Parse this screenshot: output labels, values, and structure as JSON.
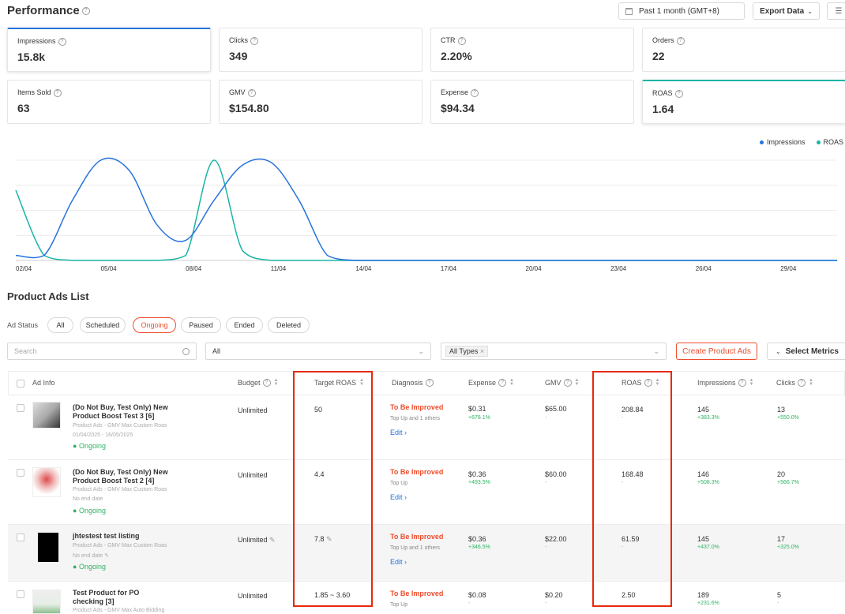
{
  "header": {
    "title": "Performance",
    "date_range": "Past 1 month (GMT+8)",
    "export_label": "Export Data"
  },
  "metrics": [
    {
      "label": "Impressions",
      "value": "15.8k"
    },
    {
      "label": "Clicks",
      "value": "349"
    },
    {
      "label": "CTR",
      "value": "2.20%"
    },
    {
      "label": "Orders",
      "value": "22"
    },
    {
      "label": "Items Sold",
      "value": "63"
    },
    {
      "label": "GMV",
      "value": "$154.80"
    },
    {
      "label": "Expense",
      "value": "$94.34"
    },
    {
      "label": "ROAS",
      "value": "1.64"
    }
  ],
  "chart": {
    "legend": [
      {
        "name": "Impressions",
        "color": "#2673dd"
      },
      {
        "name": "ROAS",
        "color": "#18b5a6"
      }
    ],
    "x_ticks": [
      "02/04",
      "05/04",
      "08/04",
      "11/04",
      "14/04",
      "17/04",
      "20/04",
      "23/04",
      "26/04",
      "29/04"
    ]
  },
  "chart_data": {
    "type": "line",
    "x": [
      "02/04",
      "03/04",
      "04/04",
      "05/04",
      "06/04",
      "07/04",
      "08/04",
      "09/04",
      "10/04",
      "11/04",
      "12/04",
      "13/04",
      "14/04",
      "15/04",
      "16/04",
      "17/04",
      "18/04",
      "19/04",
      "20/04",
      "21/04",
      "22/04",
      "23/04",
      "24/04",
      "25/04",
      "26/04",
      "27/04",
      "28/04",
      "29/04",
      "30/04",
      "01/05"
    ],
    "series": [
      {
        "name": "Impressions",
        "values": [
          0.05,
          0.05,
          0.6,
          1.0,
          0.9,
          0.35,
          0.2,
          0.6,
          0.95,
          0.98,
          0.6,
          0.05,
          0.0,
          0.0,
          0.0,
          0.0,
          0.0,
          0.0,
          0.0,
          0.0,
          0.0,
          0.0,
          0.0,
          0.0,
          0.0,
          0.0,
          0.0,
          0.0,
          0.0,
          0.0
        ]
      },
      {
        "name": "ROAS",
        "values": [
          0.7,
          0.05,
          0.0,
          0.0,
          0.0,
          0.0,
          0.05,
          1.0,
          0.1,
          0.0,
          0.0,
          0.0,
          0.0,
          0.0,
          0.0,
          0.0,
          0.0,
          0.0,
          0.0,
          0.0,
          0.0,
          0.0,
          0.0,
          0.0,
          0.0,
          0.0,
          0.0,
          0.0,
          0.0,
          0.0
        ]
      }
    ]
  },
  "list": {
    "title": "Product Ads List",
    "status_label": "Ad Status",
    "status_options": [
      "All",
      "Scheduled",
      "Ongoing",
      "Paused",
      "Ended",
      "Deleted"
    ],
    "active_status": "Ongoing",
    "search_placeholder": "Search",
    "filter_all": "All",
    "types_tag": "All Types",
    "create_label": "Create Product Ads",
    "metrics_label": "Select Metrics",
    "columns": {
      "ad_info": "Ad Info",
      "budget": "Budget",
      "target_roas": "Target ROAS",
      "diagnosis": "Diagnosis",
      "expense": "Expense",
      "gmv": "GMV",
      "roas": "ROAS",
      "impressions": "Impressions",
      "clicks": "Clicks"
    },
    "rows": [
      {
        "name": "(Do Not Buy, Test Only) New Product Boost Test 3 [6]",
        "type": "Product Ads - GMV Max Custom Roas",
        "dates": "01/04/2025 - 16/05/2025",
        "status": "Ongoing",
        "budget": "Unlimited",
        "target_roas": "50",
        "diagnosis": "To Be Improved",
        "diag_sub": "Top Up and 1 others",
        "edit": "Edit",
        "expense": "$0.31",
        "expense_delta": "+678.1%",
        "gmv": "$65.00",
        "gmv_delta": "-",
        "roas": "208.84",
        "roas_delta": "-",
        "impressions": "145",
        "impressions_delta": "+383.3%",
        "clicks": "13",
        "clicks_delta": "+550.0%"
      },
      {
        "name": "(Do Not Buy, Test Only) New Product Boost Test 2 [4]",
        "type": "Product Ads - GMV Max Custom Roas",
        "dates": "No end date",
        "status": "Ongoing",
        "budget": "Unlimited",
        "target_roas": "4.4",
        "diagnosis": "To Be Improved",
        "diag_sub": "Top Up",
        "edit": "Edit",
        "expense": "$0.36",
        "expense_delta": "+493.5%",
        "gmv": "$60.00",
        "gmv_delta": "-",
        "roas": "168.48",
        "roas_delta": "-",
        "impressions": "146",
        "impressions_delta": "+508.3%",
        "clicks": "20",
        "clicks_delta": "+566.7%"
      },
      {
        "name": "jhtestest test listing",
        "type": "Product Ads - GMV Max Custom Roas",
        "dates": "No end date",
        "status": "Ongoing",
        "budget": "Unlimited",
        "target_roas": "7.8",
        "diagnosis": "To Be Improved",
        "diag_sub": "Top Up and 1 others",
        "edit": "Edit",
        "expense": "$0.36",
        "expense_delta": "+346.5%",
        "gmv": "$22.00",
        "gmv_delta": "-",
        "roas": "61.59",
        "roas_delta": "-",
        "impressions": "145",
        "impressions_delta": "+437.0%",
        "clicks": "17",
        "clicks_delta": "+325.0%"
      },
      {
        "name": "Test Product for PO checking [3]",
        "type": "Product Ads - GMV Max Auto Bidding",
        "dates": "",
        "status": "",
        "budget": "Unlimited",
        "target_roas": "1.85 ~ 3.60",
        "diagnosis": "To Be Improved",
        "diag_sub": "Top Up",
        "edit": "",
        "expense": "$0.08",
        "expense_delta": "-",
        "gmv": "$0.20",
        "gmv_delta": "-",
        "roas": "2.50",
        "roas_delta": "",
        "impressions": "189",
        "impressions_delta": "+231.6%",
        "clicks": "5",
        "clicks_delta": "-"
      }
    ]
  }
}
